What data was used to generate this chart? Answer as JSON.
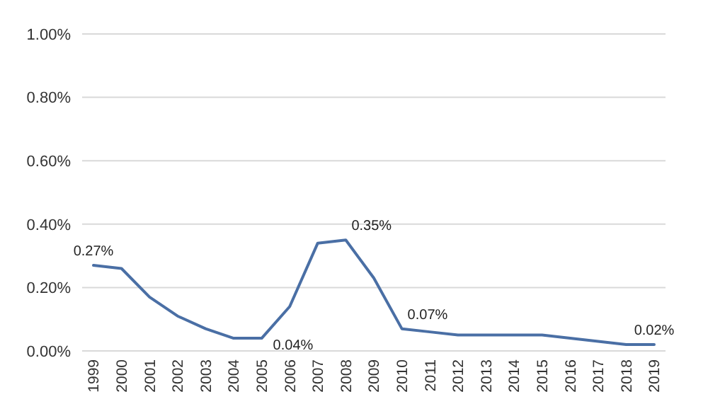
{
  "chart_data": {
    "type": "line",
    "categories": [
      "1999",
      "2000",
      "2001",
      "2002",
      "2003",
      "2004",
      "2005",
      "2006",
      "2007",
      "2008",
      "2009",
      "2010",
      "2011",
      "2012",
      "2013",
      "2014",
      "2015",
      "2016",
      "2017",
      "2018",
      "2019"
    ],
    "series": [
      {
        "color": "#4a6fa5",
        "values": [
          0.27,
          0.26,
          0.17,
          0.11,
          0.07,
          0.04,
          0.04,
          0.14,
          0.34,
          0.35,
          0.23,
          0.07,
          0.06,
          0.05,
          0.05,
          0.05,
          0.05,
          0.04,
          0.03,
          0.02,
          0.02
        ],
        "value_labels": [
          "0.27%",
          null,
          null,
          null,
          null,
          null,
          "0.04%",
          null,
          null,
          "0.35%",
          null,
          "0.07%",
          null,
          null,
          null,
          null,
          null,
          null,
          null,
          null,
          "0.02%"
        ]
      }
    ],
    "ylim": [
      0,
      1
    ],
    "yticks": [
      {
        "value": 0,
        "label": "0.00%"
      },
      {
        "value": 0.2,
        "label": "0.20%"
      },
      {
        "value": 0.4,
        "label": "0.40%"
      },
      {
        "value": 0.6,
        "label": "0.60%"
      },
      {
        "value": 0.8,
        "label": "0.80%"
      },
      {
        "value": 1,
        "label": "1.00%"
      }
    ],
    "grid": "y",
    "marker": "none",
    "line_style": "solid"
  }
}
